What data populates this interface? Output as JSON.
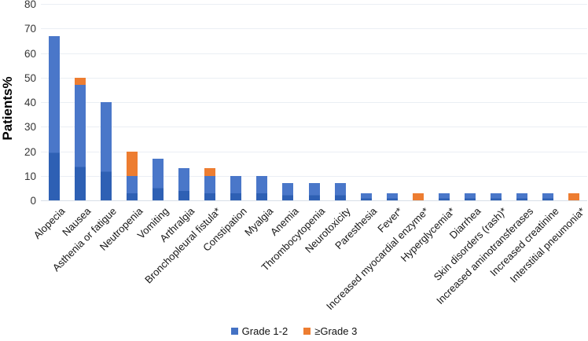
{
  "chart_data": {
    "type": "bar",
    "stacked": true,
    "orientation": "vertical",
    "title": "",
    "xlabel": "",
    "ylabel": "Patients%",
    "ylim": [
      0,
      80
    ],
    "yticks": [
      0,
      10,
      20,
      30,
      40,
      50,
      60,
      70,
      80
    ],
    "grid": true,
    "legend_position": "bottom-center",
    "categories": [
      "Alopecia",
      "Nausea",
      "Asthenia or fatigue",
      "Neutropenia",
      "Vomiting",
      "Arthralgia",
      "Bronchopleural fistula*",
      "Constipation",
      "Myalgia",
      "Anemia",
      "Thrombocytopenia",
      "Neurotoxicity",
      "Paresthesia",
      "Fever*",
      "Increased myocardial enzyme*",
      "Hyperglycemia*",
      "Diarrhea",
      "Skin disorders (rash)*",
      "Increased aminotransferases",
      "Increased creatinine",
      "Interstitial pneumonia*"
    ],
    "series": [
      {
        "name": "Grade 1-2",
        "color": "#4472C4",
        "values": [
          67,
          47,
          40,
          10,
          17,
          13,
          10,
          10,
          10,
          7,
          7,
          7,
          3,
          3,
          0,
          3,
          3,
          3,
          3,
          3,
          0
        ]
      },
      {
        "name": "≥Grade 3",
        "color": "#ED7D31",
        "values": [
          0,
          3,
          0,
          10,
          0,
          0,
          3,
          0,
          0,
          0,
          0,
          0,
          0,
          0,
          3,
          0,
          0,
          0,
          0,
          0,
          3
        ]
      }
    ],
    "colors": {
      "grade12_fill": "#4a77c9",
      "grade12_shade": "#2e60b4",
      "grade3_fill": "#ED7D31",
      "gridline": "#eaeef4",
      "axis_line": "#d7dee7",
      "tick_text": "#353535",
      "label_text": "#161616"
    }
  }
}
